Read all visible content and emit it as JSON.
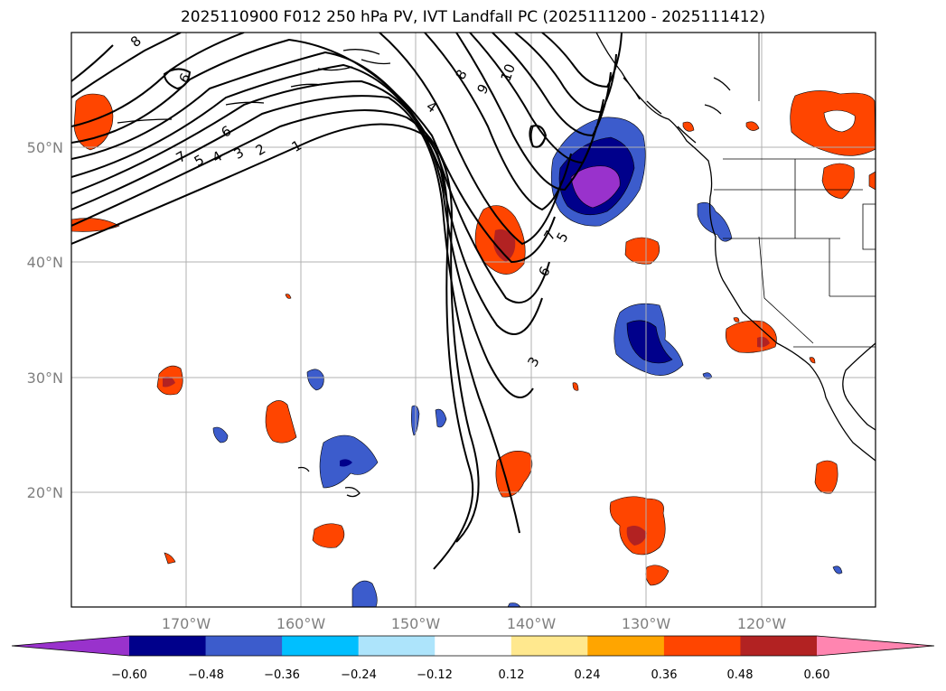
{
  "title": "2025110900 F012 250 hPa PV, IVT Landfall PC (2025111200 - 2025111412)",
  "map": {
    "region": "North Pacific / West Coast of North America",
    "lat_labels": [
      "50°N",
      "40°N",
      "30°N",
      "20°N"
    ],
    "lon_labels": [
      "170°W",
      "160°W",
      "150°W",
      "140°W",
      "130°W",
      "120°W"
    ],
    "pv_contour_labels": [
      "8",
      "6",
      "7",
      "5",
      "4",
      "3",
      "2",
      "1",
      "6",
      "4",
      "8",
      "9",
      "10",
      "7",
      "5",
      "6",
      "3"
    ]
  },
  "colorbar": {
    "tick_labels": [
      "−0.60",
      "−0.48",
      "−0.36",
      "−0.24",
      "−0.12",
      "0.12",
      "0.24",
      "0.36",
      "0.48",
      "0.60"
    ],
    "colors": [
      "#9932cc",
      "#00008b",
      "#3c5ccc",
      "#00bfff",
      "#ade4fb",
      "#ffffff",
      "#ffe88e",
      "#ffa500",
      "#ff4500",
      "#b22222",
      "#ff85b0"
    ]
  }
}
